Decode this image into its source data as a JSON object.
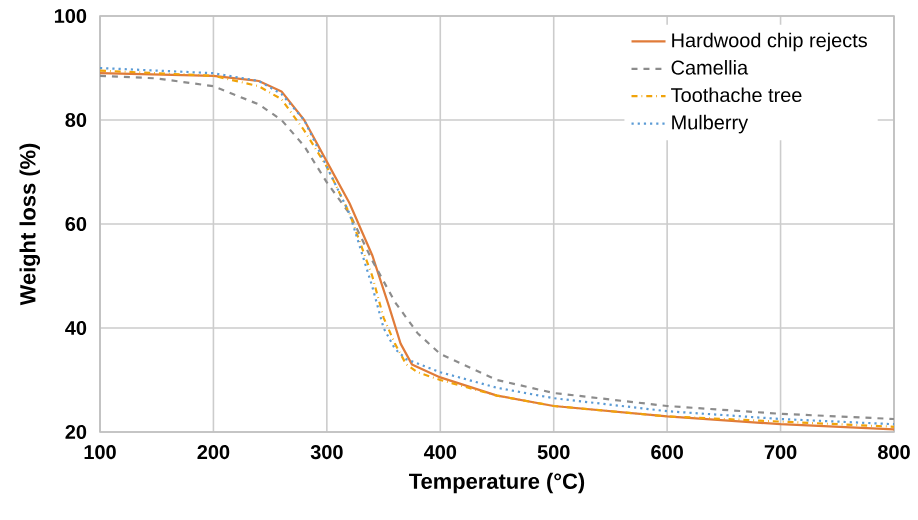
{
  "chart_data": {
    "type": "line",
    "xlabel": "Temperature (°C)",
    "ylabel": "Weight loss  (%)",
    "xlim": [
      100,
      800
    ],
    "xticks": [
      100,
      200,
      300,
      400,
      500,
      600,
      700,
      800
    ],
    "ylim": [
      20,
      100
    ],
    "yticks": [
      20,
      40,
      60,
      80,
      100
    ],
    "grid": true,
    "legend": "top right",
    "marker": "none",
    "series": [
      {
        "name": "Hardwood chip rejects",
        "color": "#e07b39",
        "line_style": "solid",
        "x": [
          100,
          200,
          240,
          260,
          280,
          300,
          320,
          340,
          355,
          365,
          375,
          400,
          450,
          500,
          600,
          700,
          800
        ],
        "values": [
          89,
          88.5,
          87.5,
          85.5,
          80,
          72,
          64,
          54,
          44,
          37,
          33,
          30.5,
          27,
          25,
          23,
          21.5,
          20.5
        ]
      },
      {
        "name": "Camellia",
        "color": "#8c8c8c",
        "line_style": "dashed",
        "x": [
          100,
          150,
          200,
          240,
          260,
          280,
          300,
          320,
          340,
          360,
          380,
          400,
          450,
          500,
          600,
          700,
          800
        ],
        "values": [
          88.5,
          88,
          86.5,
          83,
          80,
          75,
          68,
          62,
          53,
          45,
          39,
          35,
          30,
          27.5,
          25,
          23.5,
          22.5
        ]
      },
      {
        "name": "Toothache tree",
        "color": "#f0a30a",
        "line_style": "dashdot",
        "x": [
          100,
          200,
          240,
          260,
          280,
          300,
          320,
          340,
          350,
          360,
          370,
          380,
          400,
          450,
          500,
          600,
          700,
          800
        ],
        "values": [
          89.5,
          88.5,
          86.5,
          84,
          78,
          71,
          62,
          50,
          42,
          37,
          33,
          31.5,
          30,
          27,
          25,
          23,
          22,
          21
        ]
      },
      {
        "name": "Mulberry",
        "color": "#5b9bd5",
        "line_style": "dotted",
        "x": [
          100,
          200,
          240,
          260,
          280,
          300,
          320,
          340,
          350,
          360,
          370,
          400,
          450,
          500,
          600,
          700,
          800
        ],
        "values": [
          90,
          89,
          87.5,
          85,
          80,
          71,
          62,
          48,
          40,
          36,
          34,
          31.5,
          28.5,
          26.5,
          24,
          22.5,
          21.5
        ]
      }
    ]
  }
}
